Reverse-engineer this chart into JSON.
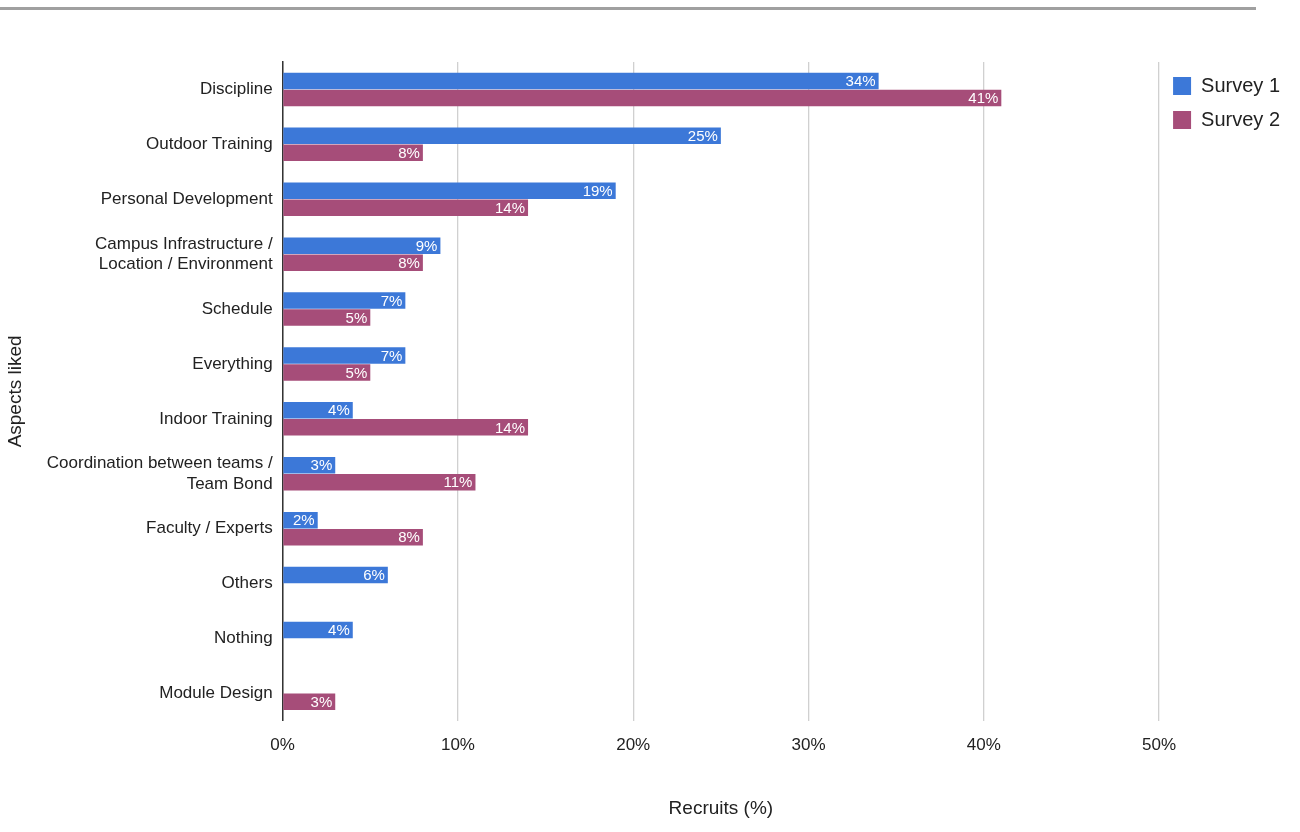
{
  "chart_data": {
    "type": "bar",
    "orientation": "horizontal",
    "xlabel": "Recruits (%)",
    "ylabel": "Aspects liked",
    "categories": [
      "Discipline",
      "Outdoor Training",
      "Personal Development",
      "Campus Infrastructure / Location / Environment",
      "Schedule",
      "Everything",
      "Indoor Training",
      "Coordination between teams / Team Bond",
      "Faculty / Experts",
      "Others",
      "Nothing",
      "Module Design"
    ],
    "series": [
      {
        "name": "Survey 1",
        "color": "#3c78d8",
        "values": [
          34,
          25,
          19,
          9,
          7,
          7,
          4,
          3,
          2,
          6,
          4,
          null
        ],
        "value_labels": [
          "34%",
          "25%",
          "19%",
          "9%",
          "7%",
          "7%",
          "4%",
          "3%",
          "2%",
          "6%",
          "4%",
          null
        ]
      },
      {
        "name": "Survey 2",
        "color": "#a64d79",
        "values": [
          41,
          8,
          14,
          8,
          5,
          5,
          14,
          11,
          8,
          null,
          null,
          3
        ],
        "value_labels": [
          "41%",
          "8%",
          "14%",
          "8%",
          "5%",
          "5%",
          "14%",
          "11%",
          "8%",
          null,
          null,
          "3%"
        ]
      }
    ],
    "xlim": [
      0,
      50
    ],
    "xticks": [
      {
        "value": 0,
        "label": "0%"
      },
      {
        "value": 10,
        "label": "10%"
      },
      {
        "value": 20,
        "label": "20%"
      },
      {
        "value": 30,
        "label": "30%"
      },
      {
        "value": 40,
        "label": "40%"
      },
      {
        "value": 50,
        "label": "50%"
      }
    ],
    "grid": "x",
    "legend": "top right"
  }
}
